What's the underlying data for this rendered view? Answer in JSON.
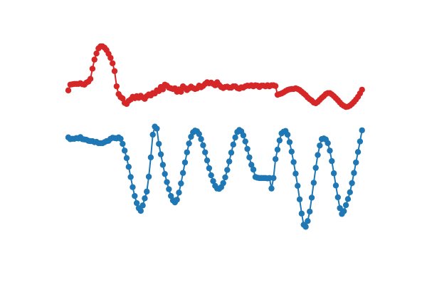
{
  "chart_data": {
    "type": "line",
    "axes_visible": false,
    "grid": false,
    "legend": "none",
    "xlim": [
      0,
      150
    ],
    "ylim": [
      -3.2,
      3.2
    ],
    "series": [
      {
        "color": "#d62728",
        "marker": "circle",
        "values": [
          1.54,
          1.71,
          1.72,
          1.73,
          1.73,
          1.73,
          1.75,
          1.72,
          1.71,
          1.77,
          1.8,
          1.88,
          2.18,
          2.45,
          2.63,
          2.78,
          2.84,
          2.84,
          2.8,
          2.73,
          2.62,
          2.5,
          2.34,
          2.11,
          1.66,
          1.43,
          1.34,
          1.3,
          1.17,
          1.14,
          1.23,
          1.27,
          1.35,
          1.31,
          1.37,
          1.32,
          1.38,
          1.33,
          1.29,
          1.37,
          1.42,
          1.39,
          1.46,
          1.45,
          1.54,
          1.52,
          1.64,
          1.57,
          1.71,
          1.68,
          1.62,
          1.6,
          1.58,
          1.6,
          1.5,
          1.57,
          1.5,
          1.66,
          1.61,
          1.55,
          1.6,
          1.65,
          1.61,
          1.58,
          1.6,
          1.68,
          1.63,
          1.67,
          1.73,
          1.78,
          1.75,
          1.77,
          1.73,
          1.69,
          1.78,
          1.7,
          1.64,
          1.61,
          1.64,
          1.65,
          1.62,
          1.62,
          1.66,
          1.66,
          1.61,
          1.59,
          1.63,
          1.62,
          1.66,
          1.68,
          1.67,
          1.69,
          1.66,
          1.69,
          1.68,
          1.64,
          1.68,
          1.68,
          1.66,
          1.69,
          1.66,
          1.69,
          1.69,
          1.67,
          1.41,
          1.43,
          1.45,
          1.48,
          1.52,
          1.55,
          1.57,
          1.58,
          1.58,
          1.6,
          1.58,
          1.55,
          1.5,
          1.45,
          1.4,
          1.33,
          1.28,
          1.24,
          1.18,
          1.16,
          1.2,
          1.26,
          1.32,
          1.37,
          1.43,
          1.46,
          1.46,
          1.42,
          1.37,
          1.31,
          1.25,
          1.18,
          1.12,
          1.08,
          1.05,
          1.06,
          1.09,
          1.14,
          1.2,
          1.27,
          1.35,
          1.45,
          1.56
        ]
      },
      {
        "color": "#1f77b4",
        "marker": "circle",
        "values": [
          0.15,
          0.1,
          0.11,
          0.11,
          0.13,
          0.12,
          0.16,
          0.1,
          0.09,
          0.08,
          0.05,
          0.04,
          0.04,
          0.01,
          0.02,
          -0.02,
          -0.02,
          -0.02,
          0.01,
          0.04,
          0.05,
          0.11,
          0.14,
          0.13,
          0.12,
          0.15,
          0.11,
          -0.04,
          -0.24,
          -0.46,
          -0.72,
          -1.02,
          -1.32,
          -1.58,
          -1.79,
          -1.94,
          -2.02,
          -1.86,
          -1.65,
          -1.45,
          -1.01,
          -0.44,
          0.23,
          0.47,
          0.41,
          -0.04,
          -0.35,
          -0.66,
          -0.93,
          -1.17,
          -1.38,
          -1.58,
          -1.71,
          -1.77,
          -1.69,
          -1.48,
          -1.21,
          -0.9,
          -0.59,
          -0.29,
          -0.03,
          0.17,
          0.3,
          0.35,
          0.33,
          0.25,
          0.1,
          -0.08,
          -0.29,
          -0.53,
          -0.76,
          -0.97,
          -1.14,
          -1.28,
          -1.36,
          -1.37,
          -1.32,
          -1.2,
          -1.03,
          -0.81,
          -0.56,
          -0.3,
          -0.06,
          0.15,
          0.31,
          0.37,
          0.33,
          0.21,
          0.03,
          -0.19,
          -0.44,
          -0.66,
          -0.8,
          -1.02,
          -1.04,
          -1.05,
          -1.05,
          -1.05,
          -1.05,
          -1.06,
          -1.05,
          -1.36,
          -1.05,
          -0.49,
          -0.21,
          0.06,
          0.27,
          0.32,
          0.34,
          0.23,
          0.01,
          -0.27,
          -0.58,
          -0.92,
          -1.28,
          -1.68,
          -2.1,
          -2.43,
          -2.49,
          -2.32,
          -2.04,
          -1.63,
          -1.19,
          -0.75,
          -0.37,
          -0.09,
          0.1,
          0.12,
          0.09,
          -0.02,
          -0.24,
          -0.55,
          -0.91,
          -1.27,
          -1.62,
          -1.94,
          -2.11,
          -2.03,
          -1.85,
          -1.67,
          -1.47,
          -1.2,
          -0.9,
          -0.59,
          -0.28,
          0.03,
          0.36
        ]
      }
    ]
  }
}
